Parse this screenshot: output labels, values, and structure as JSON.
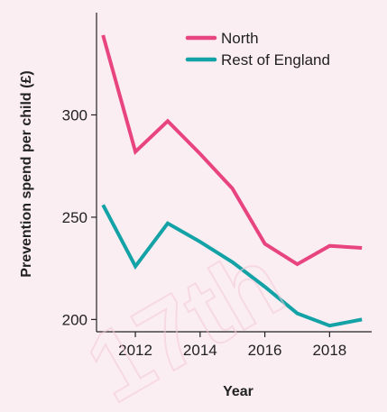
{
  "chart_data": {
    "type": "line",
    "title": "",
    "xlabel": "Year",
    "ylabel": "Prevention spend per child (£)",
    "x": [
      2011,
      2012,
      2013,
      2014,
      2015,
      2016,
      2017,
      2018,
      2019
    ],
    "xticks": [
      "2012",
      "2014",
      "2016",
      "2018"
    ],
    "yticks": [
      "200",
      "250",
      "300"
    ],
    "xlim": [
      2010.8,
      2019.3
    ],
    "ylim": [
      194,
      350
    ],
    "grid": false,
    "legend_position": "top-right",
    "series": [
      {
        "name": "North",
        "color": "#e8447f",
        "values": [
          339,
          282,
          297,
          281,
          264,
          237,
          227,
          236,
          235
        ]
      },
      {
        "name": "Rest of England",
        "color": "#13a2a6",
        "values": [
          256,
          226,
          247,
          238,
          228,
          216,
          203,
          197,
          200
        ]
      }
    ],
    "watermark": "17th"
  }
}
